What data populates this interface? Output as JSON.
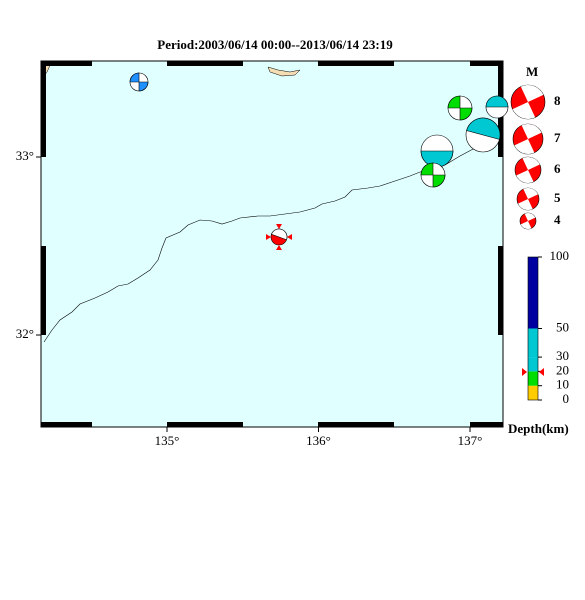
{
  "title": "Period:2003/06/14 00:00--2013/06/14 23:19",
  "lon_ticks": [
    {
      "value": 135,
      "label": "135°"
    },
    {
      "value": 136,
      "label": "136°"
    },
    {
      "value": 137,
      "label": "137°"
    }
  ],
  "lat_ticks": [
    {
      "value": 33,
      "label": "33°"
    },
    {
      "value": 32,
      "label": "32°"
    }
  ],
  "magnitude_legend": {
    "title": "M",
    "labels": [
      "8",
      "7",
      "6",
      "5",
      "4"
    ]
  },
  "depth_scale": {
    "title": "Depth(km)",
    "ticks": [
      0,
      10,
      20,
      30,
      50,
      100
    ]
  }
}
